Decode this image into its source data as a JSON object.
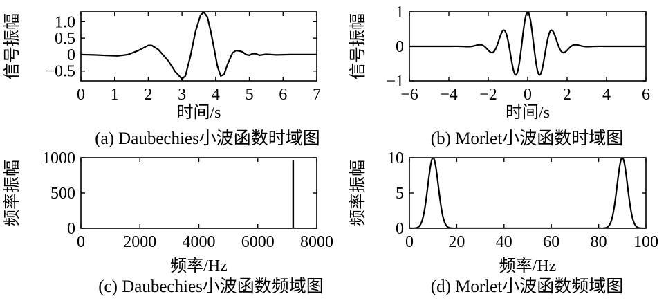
{
  "chart_data": [
    {
      "id": "a",
      "type": "line",
      "caption": "(a) Daubechies小波函数时域图",
      "xlabel": "时间/s",
      "ylabel": "信号振幅",
      "xlim": [
        0,
        7
      ],
      "ylim": [
        -0.8,
        1.3
      ],
      "xticks": [
        0,
        1,
        2,
        3,
        4,
        5,
        6,
        7
      ],
      "xtick_labels": [
        "0",
        "1",
        "2",
        "3",
        "4",
        "5",
        "6",
        "7"
      ],
      "yticks": [
        -0.5,
        0,
        0.5,
        1.0
      ],
      "ytick_labels": [
        "−0.5",
        "0",
        "0.5",
        "1.0"
      ],
      "series": [
        {
          "x": [
            0,
            0.4,
            0.8,
            1.1,
            1.4,
            1.7,
            2.0,
            2.1,
            2.3,
            2.6,
            2.8,
            3.0,
            3.1,
            3.25,
            3.4,
            3.55,
            3.65,
            3.75,
            3.85,
            3.95,
            4.05,
            4.15,
            4.25,
            4.35,
            4.5,
            4.6,
            4.7,
            4.8,
            4.9,
            5.0,
            5.1,
            5.2,
            5.3,
            5.5,
            5.8,
            6.2,
            7.0
          ],
          "y": [
            0.0,
            -0.01,
            -0.03,
            -0.04,
            0.0,
            0.12,
            0.28,
            0.28,
            0.15,
            -0.2,
            -0.52,
            -0.74,
            -0.65,
            -0.05,
            0.7,
            1.2,
            1.29,
            1.15,
            0.72,
            0.2,
            -0.35,
            -0.65,
            -0.6,
            -0.3,
            0.05,
            0.12,
            0.11,
            0.08,
            0.0,
            -0.02,
            0.03,
            0.02,
            -0.02,
            0.01,
            -0.01,
            0.0,
            0.0
          ]
        }
      ]
    },
    {
      "id": "b",
      "type": "line",
      "caption": "(b) Morlet小波函数时域图",
      "xlabel": "时间/s",
      "ylabel": "信号振幅",
      "xlim": [
        -6,
        6
      ],
      "ylim": [
        -1,
        1
      ],
      "xticks": [
        -6,
        -4,
        -2,
        0,
        2,
        4,
        6
      ],
      "xtick_labels": [
        "−6",
        "−4",
        "−2",
        "0",
        "2",
        "4",
        "6"
      ],
      "yticks": [
        -1,
        0,
        1
      ],
      "ytick_labels": [
        "−1",
        "0",
        "1"
      ],
      "function": "morlet",
      "omega": 5,
      "sample_range": [
        -6,
        6
      ]
    },
    {
      "id": "c",
      "type": "bar",
      "caption": "(c) Daubechies小波函数频域图",
      "xlabel": "频率/Hz",
      "ylabel": "频率振幅",
      "xlim": [
        0,
        8000
      ],
      "ylim": [
        0,
        1000
      ],
      "xticks": [
        0,
        2000,
        4000,
        6000,
        8000
      ],
      "xtick_labels": [
        "0",
        "2000",
        "4000",
        "6000",
        "8000"
      ],
      "yticks": [
        0,
        500,
        1000
      ],
      "ytick_labels": [
        "0",
        "500",
        "1000"
      ],
      "series": [
        {
          "x": [
            7200
          ],
          "y": [
            960
          ]
        }
      ]
    },
    {
      "id": "d",
      "type": "line",
      "caption": "(d) Morlet小波函数频域图",
      "xlabel": "频率/Hz",
      "ylabel": "频率振幅",
      "xlim": [
        0,
        100
      ],
      "ylim": [
        0,
        10
      ],
      "xticks": [
        0,
        20,
        40,
        60,
        80,
        100
      ],
      "xtick_labels": [
        "0",
        "20",
        "40",
        "60",
        "80",
        "100"
      ],
      "yticks": [
        0,
        5,
        10
      ],
      "ytick_labels": [
        "0",
        "5",
        "10"
      ],
      "function": "twin-gaussian",
      "peaks": [
        10,
        90
      ],
      "peak_amplitude": 10,
      "peak_sigma": 2.2,
      "sample_range": [
        0,
        100
      ]
    }
  ]
}
